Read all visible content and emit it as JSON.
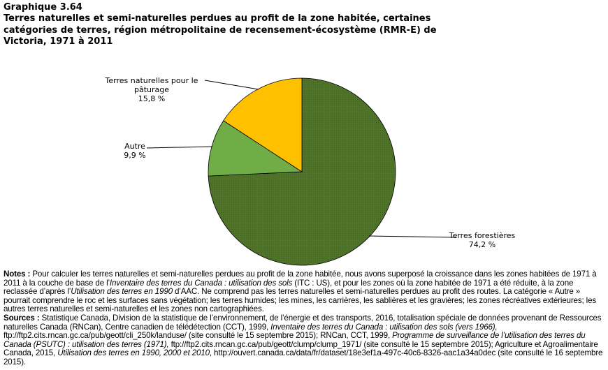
{
  "header": {
    "chart_number": "Graphique  3.64",
    "title": "Terres naturelles et semi-naturelles perdues au profit de la zone habitée, certaines catégories de terres, région métropolitaine de recensement-écosystème (RMR-E) de Victoria, 1971 à 2011"
  },
  "chart_data": {
    "type": "pie",
    "start": "12 o'clock, clockwise",
    "slices": [
      {
        "label_lines": [
          "Terres forestières",
          "74,2 %"
        ],
        "category": "Terres forestières",
        "value": 74.2,
        "color": "#4e7329"
      },
      {
        "label_lines": [
          "Autre",
          "9,9 %"
        ],
        "category": "Autre",
        "value": 9.9,
        "color": "#70ad47"
      },
      {
        "label_lines": [
          "Terres naturelles pour le",
          "pâturage",
          "15,8 %"
        ],
        "category": "Terres naturelles pour le pâturage",
        "value": 15.8,
        "color": "#ffc000"
      }
    ]
  },
  "notes": {
    "notes_label": "Notes :",
    "notes_segments": [
      {
        "text": " Pour calculer les terres naturelles et semi-naturelles perdues au profit de la zone habitée, nous avons superposé la croissance dans les zones habitées de 1971 à 2011 à la couche de base de l’",
        "italic": false
      },
      {
        "text": "Inventaire des terres du Canada : utilisation des sols",
        "italic": true
      },
      {
        "text": " (ITC : US), et pour les zones où la zone habitée de 1971 a été réduite, à la zone reclassée d’après l’",
        "italic": false
      },
      {
        "text": "Utilisation des terres en 1990",
        "italic": true
      },
      {
        "text": " d’AAC. Ne comprend pas les terres naturelles et semi-naturelles perdues au profit des routes. La catégorie « Autre » pourrait comprendre le roc et les surfaces sans végétation; les terres humides; les mines, les carrières, les sablières et les gravières; les zones récréatives extérieures; les autres terres naturelles et semi-naturelles et les zones non cartographiées.",
        "italic": false
      }
    ],
    "sources_label": "Sources :",
    "sources_segments": [
      {
        "text": " Statistique Canada, Division de la statistique de l’environnement, de l’énergie et des transports, 2016, totalisation spéciale de données provenant de Ressources naturelles Canada (RNCan), Centre canadien de télédétection (CCT), 1999, ",
        "italic": false
      },
      {
        "text": "Inventaire des terres du Canada : utilisation des sols (vers 1966),",
        "italic": true
      },
      {
        "text": " ftp://ftp2.cits.rncan.gc.ca/pub/geott/cli_250k/landuse/ (site consulté le 15 septembre 2015); RNCan, CCT, 1999, ",
        "italic": false
      },
      {
        "text": "Programme de surveillance de l’utilisation des terres du Canada (PSUTC) : utilisation des terres (1971),",
        "italic": true
      },
      {
        "text": " ftp://ftp2.cits.rncan.gc.ca/pub/geott/clump/clump_1971/ (site consulté le 15 septembre 2015); Agriculture et Agroalimentaire Canada, 2015, ",
        "italic": false
      },
      {
        "text": "Utilisation des terres en 1990, 2000 et 2010",
        "italic": true
      },
      {
        "text": ", http://ouvert.canada.ca/data/fr/dataset/18e3ef1a-497c-40c6-8326-aac1a34a0dec (site consulté le 16 septembre 2015).",
        "italic": false
      }
    ]
  }
}
